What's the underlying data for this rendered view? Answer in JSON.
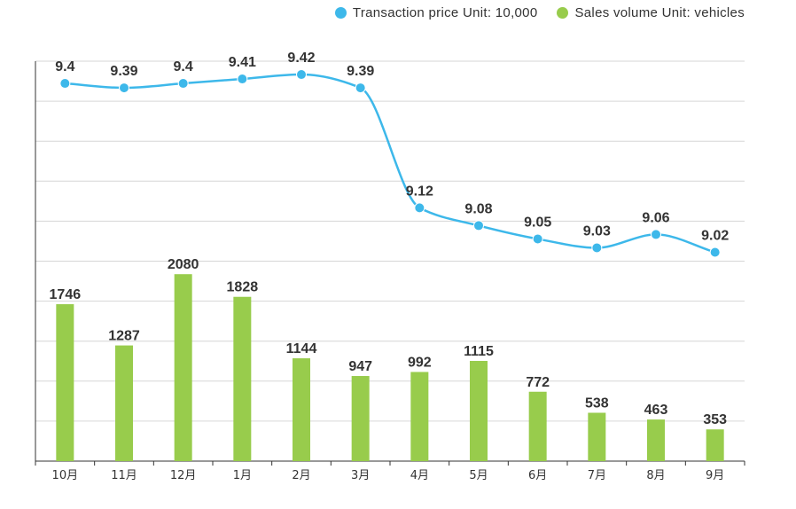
{
  "legend": {
    "price_label": "Transaction price Unit: 10,000",
    "volume_label": "Sales volume Unit: vehicles"
  },
  "colors": {
    "price": "#3db8ea",
    "volume": "#98cc4c",
    "grid": "#d6d6d6",
    "axis": "#333333",
    "label": "#333333"
  },
  "chart_data": {
    "type": "bar",
    "categories": [
      "10月",
      "11月",
      "12月",
      "1月",
      "2月",
      "3月",
      "4月",
      "5月",
      "6月",
      "7月",
      "8月",
      "9月"
    ],
    "series": [
      {
        "name": "Sales volume Unit: vehicles",
        "type": "bar",
        "values": [
          1746,
          1287,
          2080,
          1828,
          1144,
          947,
          992,
          1115,
          772,
          538,
          463,
          353
        ],
        "ylim": [
          0,
          4450
        ]
      },
      {
        "name": "Transaction price Unit: 10,000",
        "type": "line",
        "smooth": true,
        "values": [
          9.4,
          9.39,
          9.4,
          9.41,
          9.42,
          9.39,
          9.12,
          9.08,
          9.05,
          9.03,
          9.06,
          9.02
        ],
        "ylim": [
          8.55,
          9.45
        ]
      }
    ],
    "grid": true,
    "legend_position": "top-right"
  }
}
